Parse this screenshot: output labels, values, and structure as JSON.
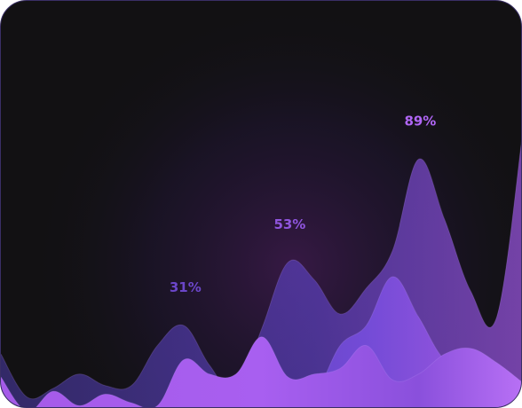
{
  "chart_data": {
    "type": "area",
    "title": "",
    "xlabel": "",
    "ylabel": "",
    "ylim": [
      0,
      100
    ],
    "grid": false,
    "legend": "none",
    "series": [
      {
        "values": [
          13,
          1,
          8,
          3,
          7,
          4,
          3,
          19,
          14,
          14,
          27,
          13,
          14,
          16,
          24,
          12,
          14,
          21,
          23,
          18,
          11
        ],
        "color": "#b45cf2"
      },
      {
        "values": [
          6,
          0,
          0,
          0,
          2,
          0,
          1,
          0,
          3,
          5,
          11,
          8,
          7,
          24,
          31,
          48,
          34,
          19,
          17,
          9,
          6
        ],
        "color": "#7b50e6"
      },
      {
        "values": [
          21,
          6,
          9,
          14,
          10,
          10,
          24,
          31,
          17,
          8,
          30,
          53,
          47,
          35,
          44,
          57,
          89,
          68,
          43,
          34,
          99
        ],
        "color": "#5a3fb8"
      }
    ],
    "annotations": [
      {
        "text": "31%",
        "x": 7,
        "value": 31,
        "color": "#6b46c9"
      },
      {
        "text": "53%",
        "x": 11,
        "value": 53,
        "color": "#8f55dd"
      },
      {
        "text": "89%",
        "x": 16,
        "value": 89,
        "color": "#b066f5"
      }
    ]
  }
}
